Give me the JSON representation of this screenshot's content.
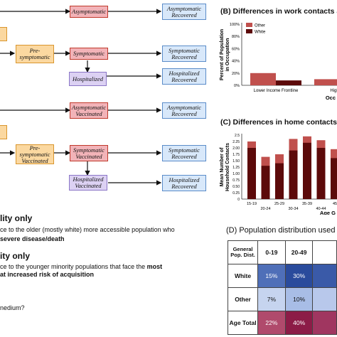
{
  "flow": {
    "asymptomatic": "Asymptomatic",
    "asymptomatic_recovered": "Asymptomatic Recovered",
    "pre_symptomatic": "Pre-symptomatic",
    "symptomatic": "Symptomatic",
    "symptomatic_recovered": "Symptomatic Recovered",
    "hospitalized": "Hospitalized",
    "hospitalized_recovered": "Hospitalized Recovered",
    "asymptomatic_vaccinated": "Asymptomatic Vaccinated",
    "asymptomatic_recovered_2": "Asymptomatic Recovered",
    "pre_symptomatic_vaccinated": "Pre-symptomatic Vaccinated",
    "symptomatic_vaccinated": "Symptomatic Vaccinated",
    "symptomatic_recovered_2": "Symptomatic Recovered",
    "hospitalized_vaccinated": "Hospitalized Vaccinated",
    "hospitalized_recovered_2": "Hospitalized Recovered"
  },
  "notes": {
    "heading1": "lity only",
    "line1": "ce to the older (mostly white) more accessible population who",
    "line2": "severe disease/death",
    "heading2": "ity only",
    "line3": "ce to the younger minority populations that face the",
    "line3_bold": "most",
    "line4": "at increased risk of acquisition",
    "line5": "nedium?"
  },
  "panel_b": {
    "title": "(B) Differences in work contacts acc",
    "ylabel": "Percent of Population in Occupation",
    "xlabel": "Occ",
    "colors": {
      "other": "#c0504d",
      "white": "#5c0a0a"
    }
  },
  "panel_c": {
    "title": "(C) Differences in home contacts acc",
    "ylabel": "Mean Number of Household Contacts",
    "xlabel": "Age G",
    "colors": {
      "other": "#c0504d",
      "white": "#5c0a0a"
    }
  },
  "panel_d": {
    "title": "(D) Population distribution used (fr",
    "header": [
      "General Pop. Dist.",
      "0-19",
      "20-49",
      ""
    ],
    "rows": [
      {
        "label": "White",
        "cells": [
          "15%",
          "30%",
          ""
        ],
        "colors": [
          "#4f6fb8",
          "#2a4b9c",
          "#3a5aa8"
        ]
      },
      {
        "label": "Other",
        "cells": [
          "7%",
          "10%",
          ""
        ],
        "colors": [
          "#c6d4ef",
          "#a8bde6",
          "#b8c8eb"
        ]
      },
      {
        "label": "Age Total",
        "cells": [
          "22%",
          "40%",
          ""
        ],
        "colors": [
          "#b04a6c",
          "#8c1c47",
          "#a03660"
        ]
      }
    ]
  },
  "chart_data": [
    {
      "type": "bar",
      "title": "(B) Differences in work contacts acc",
      "ylabel": "Percent of Population in Occupation",
      "xlabel": "Occ",
      "categories": [
        "Lower Income Frontline",
        "Higher Inc"
      ],
      "series": [
        {
          "name": "Other",
          "values": [
            20,
            10
          ]
        },
        {
          "name": "White",
          "values": [
            8,
            9
          ]
        }
      ],
      "ylim": [
        0,
        100
      ],
      "yticks": [
        "0%",
        "20%",
        "40%",
        "60%",
        "80%",
        "100%"
      ],
      "legend": "top-left"
    },
    {
      "type": "bar",
      "title": "(C) Differences in home contacts acc",
      "ylabel": "Mean Number of Household Contacts",
      "xlabel": "Age G",
      "categories": [
        "15-19",
        "20-24",
        "25-29",
        "30-34",
        "35-39",
        "40-44",
        "45"
      ],
      "white": [
        2.0,
        1.3,
        1.4,
        1.9,
        2.2,
        2.0,
        1.6
      ],
      "other": [
        2.25,
        1.65,
        1.75,
        2.35,
        2.45,
        2.3,
        1.95
      ],
      "ylim": [
        0,
        2.5
      ],
      "yticks": [
        "0",
        "0.25",
        "0.50",
        "0.75",
        "1.00",
        "1.25",
        "1.50",
        "1.75",
        "2.00",
        "2.25",
        "2.5"
      ]
    }
  ]
}
